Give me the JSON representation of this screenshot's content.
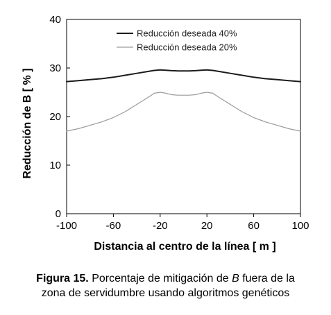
{
  "chart_data": {
    "type": "line",
    "xlabel": "Distancia al centro de la línea [ m ]",
    "ylabel": "Reducción de B [ % ]",
    "xlim": [
      -100,
      100
    ],
    "ylim": [
      0,
      40
    ],
    "xticks": [
      "-100",
      "-60",
      "-20",
      "20",
      "60",
      "100"
    ],
    "yticks": [
      "0",
      "10",
      "20",
      "30",
      "40"
    ],
    "grid": false,
    "legend_position": "top-center",
    "x": [
      -100,
      -90,
      -80,
      -70,
      -60,
      -50,
      -40,
      -30,
      -25,
      -20,
      -15,
      -10,
      -5,
      0,
      5,
      10,
      15,
      20,
      25,
      30,
      40,
      50,
      60,
      70,
      80,
      90,
      100
    ],
    "series": [
      {
        "name": "Reducción deseada 40%",
        "color": "#1a1a1a",
        "values": [
          27.2,
          27.4,
          27.6,
          27.8,
          28.1,
          28.5,
          28.9,
          29.3,
          29.5,
          29.6,
          29.55,
          29.45,
          29.4,
          29.4,
          29.4,
          29.45,
          29.55,
          29.6,
          29.5,
          29.3,
          28.9,
          28.5,
          28.1,
          27.8,
          27.6,
          27.4,
          27.2
        ]
      },
      {
        "name": "Reducción deseada 20%",
        "color": "#9a9a9a",
        "values": [
          17.0,
          17.5,
          18.2,
          18.9,
          19.8,
          21.0,
          22.5,
          24.0,
          24.8,
          25.0,
          24.8,
          24.5,
          24.4,
          24.4,
          24.4,
          24.5,
          24.8,
          25.0,
          24.8,
          24.0,
          22.5,
          21.0,
          19.8,
          18.9,
          18.2,
          17.5,
          17.0
        ]
      }
    ]
  },
  "caption": {
    "label": "Figura 15.",
    "text_before": " Porcentaje de mitigación de ",
    "italic": "B",
    "text_after": " fuera de la",
    "line2": "zona de servidumbre usando algoritmos genéticos"
  }
}
